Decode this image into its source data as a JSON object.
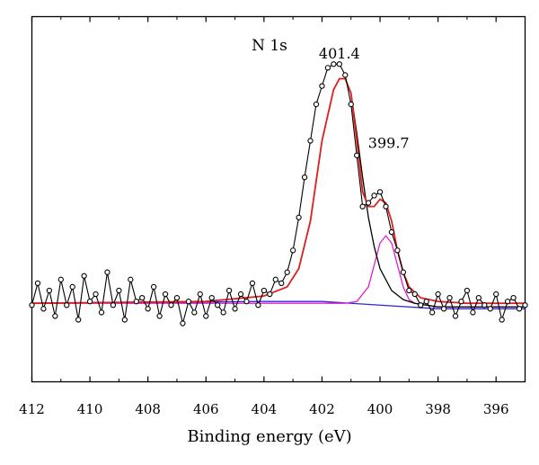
{
  "chart_data": {
    "type": "scatter",
    "title": "N 1s",
    "xlabel": "Binding energy (eV)",
    "ylabel": "",
    "xlim": [
      412,
      395
    ],
    "ylim": [
      0,
      1
    ],
    "x_reversed": true,
    "grid": false,
    "legend": "none",
    "xticks": [
      412,
      410,
      408,
      406,
      404,
      402,
      400,
      398,
      396
    ],
    "xtick_labels": [
      "412",
      "410",
      "408",
      "406",
      "404",
      "402",
      "400",
      "398",
      "396"
    ],
    "yticks_shown": false,
    "annotations": [
      {
        "text": "401.4",
        "x": 401.4,
        "y": 0.885
      },
      {
        "text": "399.7",
        "x": 399.7,
        "y": 0.64
      }
    ],
    "series": [
      {
        "role": "raw-data",
        "style": "black line with open circle markers",
        "color": "#000000",
        "x": [
          412.0,
          411.8,
          411.6,
          411.4,
          411.2,
          411.0,
          410.8,
          410.6,
          410.4,
          410.2,
          410.0,
          409.8,
          409.6,
          409.4,
          409.2,
          409.0,
          408.8,
          408.6,
          408.4,
          408.2,
          408.0,
          407.8,
          407.6,
          407.4,
          407.2,
          407.0,
          406.8,
          406.6,
          406.4,
          406.2,
          406.0,
          405.8,
          405.6,
          405.4,
          405.2,
          405.0,
          404.8,
          404.6,
          404.4,
          404.2,
          404.0,
          403.8,
          403.6,
          403.4,
          403.2,
          403.0,
          402.8,
          402.6,
          402.4,
          402.2,
          402.0,
          401.8,
          401.6,
          401.4,
          401.2,
          401.0,
          400.8,
          400.6,
          400.4,
          400.2,
          400.0,
          399.8,
          399.6,
          399.4,
          399.2,
          399.0,
          398.8,
          398.6,
          398.4,
          398.2,
          398.0,
          397.8,
          397.6,
          397.4,
          397.2,
          397.0,
          396.8,
          396.6,
          396.4,
          396.2,
          396.0,
          395.8,
          395.6,
          395.4,
          395.2,
          395.0
        ],
        "y": [
          0.21,
          0.27,
          0.2,
          0.25,
          0.18,
          0.28,
          0.21,
          0.26,
          0.17,
          0.29,
          0.22,
          0.24,
          0.19,
          0.3,
          0.21,
          0.25,
          0.17,
          0.28,
          0.22,
          0.23,
          0.2,
          0.26,
          0.18,
          0.24,
          0.21,
          0.23,
          0.16,
          0.22,
          0.19,
          0.24,
          0.18,
          0.23,
          0.21,
          0.19,
          0.25,
          0.2,
          0.24,
          0.22,
          0.27,
          0.21,
          0.25,
          0.24,
          0.28,
          0.27,
          0.3,
          0.36,
          0.45,
          0.56,
          0.66,
          0.76,
          0.81,
          0.86,
          0.87,
          0.87,
          0.84,
          0.76,
          0.62,
          0.48,
          0.49,
          0.51,
          0.52,
          0.48,
          0.41,
          0.36,
          0.3,
          0.25,
          0.24,
          0.21,
          0.22,
          0.19,
          0.24,
          0.2,
          0.23,
          0.18,
          0.22,
          0.25,
          0.19,
          0.23,
          0.21,
          0.2,
          0.24,
          0.17,
          0.22,
          0.23,
          0.2,
          0.21
        ]
      },
      {
        "role": "fitted envelope",
        "style": "red line",
        "color": "#e02020",
        "x": [
          412.0,
          406.0,
          404.0,
          403.2,
          402.8,
          402.4,
          402.0,
          401.6,
          401.4,
          401.2,
          401.0,
          400.8,
          400.6,
          400.4,
          400.2,
          400.0,
          399.8,
          399.6,
          399.4,
          399.2,
          399.0,
          398.6,
          398.0,
          397.0,
          395.0
        ],
        "y": [
          0.215,
          0.22,
          0.235,
          0.26,
          0.31,
          0.44,
          0.66,
          0.8,
          0.83,
          0.83,
          0.79,
          0.66,
          0.52,
          0.48,
          0.48,
          0.5,
          0.49,
          0.44,
          0.36,
          0.3,
          0.26,
          0.23,
          0.22,
          0.215,
          0.215
        ]
      },
      {
        "role": "component 401.4",
        "style": "black line",
        "color": "#000000",
        "x": [
          412.0,
          406.0,
          404.0,
          403.2,
          402.8,
          402.4,
          402.0,
          401.6,
          401.4,
          401.2,
          401.0,
          400.8,
          400.6,
          400.4,
          400.2,
          400.0,
          399.6,
          399.2,
          398.8,
          398.4,
          398.0,
          397.0,
          395.0
        ],
        "y": [
          0.215,
          0.22,
          0.235,
          0.26,
          0.31,
          0.44,
          0.66,
          0.8,
          0.83,
          0.83,
          0.79,
          0.68,
          0.56,
          0.45,
          0.37,
          0.31,
          0.25,
          0.225,
          0.215,
          0.21,
          0.205,
          0.205,
          0.205
        ]
      },
      {
        "role": "component 399.7",
        "style": "magenta line",
        "color": "#e020d0",
        "x": [
          412.0,
          401.2,
          400.8,
          400.4,
          400.2,
          400.0,
          399.8,
          399.6,
          399.4,
          399.2,
          399.0,
          398.8,
          398.4,
          398.0,
          395.0
        ],
        "y": [
          0.215,
          0.215,
          0.22,
          0.26,
          0.32,
          0.38,
          0.4,
          0.38,
          0.32,
          0.26,
          0.225,
          0.215,
          0.21,
          0.205,
          0.205
        ]
      },
      {
        "role": "background",
        "style": "blue line",
        "color": "#2a2ad8",
        "x": [
          412.0,
          404.0,
          402.0,
          400.0,
          398.0,
          395.0
        ],
        "y": [
          0.215,
          0.22,
          0.22,
          0.21,
          0.2,
          0.2
        ]
      }
    ]
  }
}
